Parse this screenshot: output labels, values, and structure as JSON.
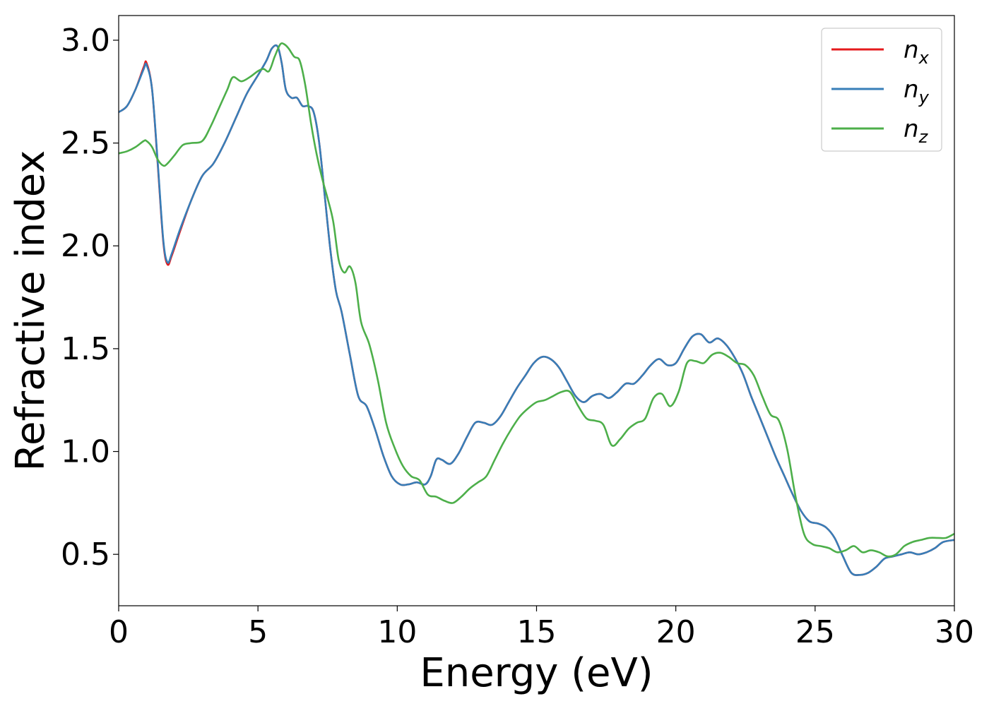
{
  "chart_data": {
    "type": "line",
    "xlabel": "Energy (eV)",
    "ylabel": "Refractive index",
    "xlim": [
      0,
      30
    ],
    "ylim": [
      0.25,
      3.12
    ],
    "xticks": [
      0,
      5,
      10,
      15,
      20,
      25,
      30
    ],
    "yticks": [
      0.5,
      1.0,
      1.5,
      2.0,
      2.5,
      3.0
    ],
    "xtick_labels": [
      "0",
      "5",
      "10",
      "15",
      "20",
      "25",
      "30"
    ],
    "ytick_labels": [
      "0.5",
      "1.0",
      "1.5",
      "2.0",
      "2.5",
      "3.0"
    ],
    "grid": false,
    "legend_position": "top-right",
    "series": [
      {
        "name": "n_x",
        "label_base": "n",
        "label_sub": "x",
        "color": "#e41a1c",
        "x": [
          0,
          0.3,
          0.6,
          0.9,
          1.0,
          1.2,
          1.4,
          1.6,
          1.75,
          1.9,
          2.2,
          2.6,
          3.0,
          3.4,
          3.8,
          4.2,
          4.6,
          5.0,
          5.3,
          5.5,
          5.7,
          5.85,
          6.0,
          6.2,
          6.4,
          6.6,
          6.8,
          7.0,
          7.2,
          7.4,
          7.6,
          7.8,
          8.0,
          8.3,
          8.6,
          8.9,
          9.2,
          9.5,
          9.8,
          10.1,
          10.4,
          10.7,
          11.0,
          11.2,
          11.4,
          11.6,
          11.9,
          12.2,
          12.5,
          12.8,
          13.1,
          13.4,
          13.7,
          14.0,
          14.3,
          14.6,
          14.9,
          15.2,
          15.5,
          15.8,
          16.1,
          16.4,
          16.7,
          17.0,
          17.3,
          17.6,
          17.9,
          18.2,
          18.5,
          18.8,
          19.1,
          19.4,
          19.7,
          20.0,
          20.3,
          20.6,
          20.9,
          21.2,
          21.5,
          21.8,
          22.1,
          22.4,
          22.7,
          23.0,
          23.3,
          23.6,
          23.9,
          24.2,
          24.5,
          24.8,
          25.1,
          25.4,
          25.7,
          26.0,
          26.3,
          26.6,
          26.9,
          27.2,
          27.5,
          27.8,
          28.1,
          28.4,
          28.7,
          29.0,
          29.3,
          29.6,
          30.0
        ],
        "values": [
          2.65,
          2.68,
          2.76,
          2.87,
          2.89,
          2.76,
          2.4,
          2.02,
          1.91,
          1.95,
          2.07,
          2.22,
          2.34,
          2.4,
          2.5,
          2.62,
          2.74,
          2.83,
          2.9,
          2.96,
          2.97,
          2.89,
          2.76,
          2.72,
          2.72,
          2.68,
          2.68,
          2.65,
          2.5,
          2.24,
          1.98,
          1.78,
          1.68,
          1.47,
          1.27,
          1.22,
          1.11,
          0.98,
          0.88,
          0.84,
          0.84,
          0.85,
          0.84,
          0.88,
          0.96,
          0.96,
          0.94,
          0.99,
          1.07,
          1.14,
          1.14,
          1.13,
          1.17,
          1.24,
          1.31,
          1.37,
          1.43,
          1.46,
          1.45,
          1.41,
          1.34,
          1.27,
          1.24,
          1.27,
          1.28,
          1.26,
          1.29,
          1.33,
          1.33,
          1.37,
          1.42,
          1.45,
          1.42,
          1.43,
          1.5,
          1.56,
          1.57,
          1.53,
          1.55,
          1.52,
          1.46,
          1.38,
          1.27,
          1.17,
          1.07,
          0.97,
          0.88,
          0.79,
          0.71,
          0.66,
          0.65,
          0.63,
          0.58,
          0.49,
          0.41,
          0.4,
          0.41,
          0.44,
          0.48,
          0.49,
          0.5,
          0.51,
          0.5,
          0.51,
          0.53,
          0.56,
          0.57
        ]
      },
      {
        "name": "n_y",
        "label_base": "n",
        "label_sub": "y",
        "color": "#377eb8",
        "x": [
          0,
          0.3,
          0.6,
          0.9,
          1.0,
          1.2,
          1.4,
          1.6,
          1.75,
          1.9,
          2.2,
          2.6,
          3.0,
          3.4,
          3.8,
          4.2,
          4.6,
          5.0,
          5.3,
          5.5,
          5.7,
          5.85,
          6.0,
          6.2,
          6.4,
          6.6,
          6.8,
          7.0,
          7.2,
          7.4,
          7.6,
          7.8,
          8.0,
          8.3,
          8.6,
          8.9,
          9.2,
          9.5,
          9.8,
          10.1,
          10.4,
          10.7,
          11.0,
          11.2,
          11.4,
          11.6,
          11.9,
          12.2,
          12.5,
          12.8,
          13.1,
          13.4,
          13.7,
          14.0,
          14.3,
          14.6,
          14.9,
          15.2,
          15.5,
          15.8,
          16.1,
          16.4,
          16.7,
          17.0,
          17.3,
          17.6,
          17.9,
          18.2,
          18.5,
          18.8,
          19.1,
          19.4,
          19.7,
          20.0,
          20.3,
          20.6,
          20.9,
          21.2,
          21.5,
          21.8,
          22.1,
          22.4,
          22.7,
          23.0,
          23.3,
          23.6,
          23.9,
          24.2,
          24.5,
          24.8,
          25.1,
          25.4,
          25.7,
          26.0,
          26.3,
          26.6,
          26.9,
          27.2,
          27.5,
          27.8,
          28.1,
          28.4,
          28.7,
          29.0,
          29.3,
          29.6,
          30.0
        ],
        "values": [
          2.65,
          2.68,
          2.76,
          2.86,
          2.88,
          2.76,
          2.41,
          2.03,
          1.92,
          1.96,
          2.08,
          2.22,
          2.34,
          2.4,
          2.5,
          2.62,
          2.74,
          2.83,
          2.9,
          2.96,
          2.97,
          2.89,
          2.76,
          2.72,
          2.72,
          2.68,
          2.68,
          2.65,
          2.5,
          2.24,
          1.98,
          1.78,
          1.68,
          1.47,
          1.27,
          1.22,
          1.11,
          0.98,
          0.88,
          0.84,
          0.84,
          0.85,
          0.84,
          0.88,
          0.96,
          0.96,
          0.94,
          0.99,
          1.07,
          1.14,
          1.14,
          1.13,
          1.17,
          1.24,
          1.31,
          1.37,
          1.43,
          1.46,
          1.45,
          1.41,
          1.34,
          1.27,
          1.24,
          1.27,
          1.28,
          1.26,
          1.29,
          1.33,
          1.33,
          1.37,
          1.42,
          1.45,
          1.42,
          1.43,
          1.5,
          1.56,
          1.57,
          1.53,
          1.55,
          1.52,
          1.46,
          1.38,
          1.27,
          1.17,
          1.07,
          0.97,
          0.88,
          0.79,
          0.71,
          0.66,
          0.65,
          0.63,
          0.58,
          0.49,
          0.41,
          0.4,
          0.41,
          0.44,
          0.48,
          0.49,
          0.5,
          0.51,
          0.5,
          0.51,
          0.53,
          0.56,
          0.57
        ]
      },
      {
        "name": "n_z",
        "label_base": "n",
        "label_sub": "z",
        "color": "#4daf4a",
        "x": [
          0,
          0.3,
          0.6,
          0.9,
          1.0,
          1.2,
          1.4,
          1.6,
          1.75,
          2.0,
          2.3,
          2.6,
          3.0,
          3.3,
          3.6,
          3.9,
          4.1,
          4.4,
          4.7,
          5.0,
          5.2,
          5.4,
          5.6,
          5.8,
          5.95,
          6.1,
          6.3,
          6.5,
          6.7,
          6.9,
          7.1,
          7.3,
          7.5,
          7.7,
          7.9,
          8.1,
          8.3,
          8.5,
          8.7,
          9.0,
          9.3,
          9.6,
          9.9,
          10.2,
          10.5,
          10.8,
          11.1,
          11.4,
          11.7,
          12.0,
          12.3,
          12.6,
          12.9,
          13.2,
          13.5,
          13.8,
          14.1,
          14.4,
          14.7,
          15.0,
          15.3,
          15.6,
          15.9,
          16.2,
          16.5,
          16.8,
          17.1,
          17.4,
          17.7,
          18.0,
          18.3,
          18.6,
          18.9,
          19.2,
          19.5,
          19.8,
          20.1,
          20.4,
          20.7,
          21.0,
          21.3,
          21.6,
          21.9,
          22.2,
          22.5,
          22.8,
          23.1,
          23.4,
          23.7,
          24.0,
          24.3,
          24.6,
          24.9,
          25.2,
          25.5,
          25.8,
          26.1,
          26.4,
          26.7,
          27.0,
          27.3,
          27.6,
          27.9,
          28.2,
          28.5,
          28.8,
          29.1,
          29.4,
          29.7,
          30.0
        ],
        "values": [
          2.45,
          2.46,
          2.48,
          2.51,
          2.51,
          2.48,
          2.42,
          2.39,
          2.4,
          2.44,
          2.49,
          2.5,
          2.51,
          2.58,
          2.67,
          2.76,
          2.82,
          2.8,
          2.82,
          2.85,
          2.86,
          2.85,
          2.92,
          2.98,
          2.98,
          2.96,
          2.92,
          2.9,
          2.78,
          2.6,
          2.45,
          2.33,
          2.23,
          2.12,
          1.93,
          1.87,
          1.9,
          1.82,
          1.63,
          1.52,
          1.35,
          1.14,
          1.02,
          0.93,
          0.88,
          0.86,
          0.79,
          0.78,
          0.76,
          0.75,
          0.78,
          0.82,
          0.85,
          0.88,
          0.96,
          1.04,
          1.11,
          1.17,
          1.21,
          1.24,
          1.25,
          1.27,
          1.29,
          1.29,
          1.22,
          1.16,
          1.15,
          1.13,
          1.03,
          1.06,
          1.11,
          1.14,
          1.16,
          1.26,
          1.28,
          1.22,
          1.29,
          1.43,
          1.44,
          1.43,
          1.47,
          1.48,
          1.46,
          1.43,
          1.42,
          1.37,
          1.27,
          1.18,
          1.15,
          1.01,
          0.78,
          0.6,
          0.55,
          0.54,
          0.53,
          0.51,
          0.52,
          0.54,
          0.51,
          0.52,
          0.51,
          0.49,
          0.5,
          0.54,
          0.56,
          0.57,
          0.58,
          0.58,
          0.58,
          0.6
        ]
      }
    ]
  }
}
